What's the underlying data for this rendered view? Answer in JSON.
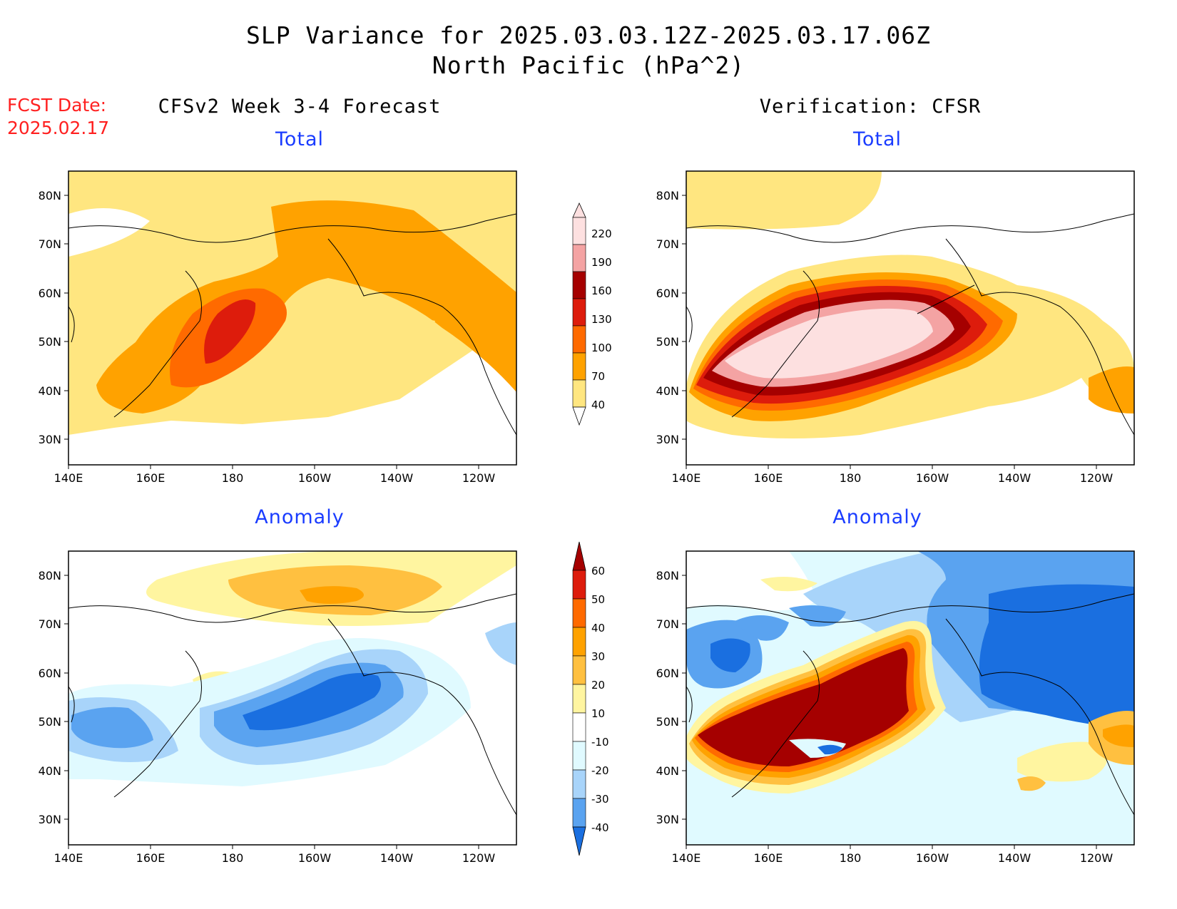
{
  "header": {
    "title_line1": "SLP Variance for 2025.03.03.12Z-2025.03.17.06Z",
    "title_line2": "North Pacific (hPa^2)",
    "fcst_label": "FCST Date:",
    "fcst_date": "2025.02.17"
  },
  "columns": {
    "left": "CFSv2 Week 3-4 Forecast",
    "right": "Verification: CFSR"
  },
  "panels": {
    "top_left_title": "Total",
    "top_right_title": "Total",
    "bottom_left_title": "Anomaly",
    "bottom_right_title": "Anomaly"
  },
  "axes": {
    "lat_labels": [
      "80N",
      "70N",
      "60N",
      "50N",
      "40N",
      "30N"
    ],
    "lon_labels": [
      "140E",
      "160E",
      "180",
      "160W",
      "140W",
      "120W"
    ]
  },
  "colorbars": {
    "total": {
      "levels": [
        "220",
        "190",
        "160",
        "130",
        "100",
        "70",
        "40"
      ],
      "colors": [
        "#fde0e0",
        "#f4a3a3",
        "#a50000",
        "#dd1c0c",
        "#ff6a00",
        "#ffa200",
        "#ffe680"
      ]
    },
    "anomaly": {
      "levels": [
        "60",
        "50",
        "40",
        "30",
        "20",
        "10",
        "-10",
        "-20",
        "-30",
        "-40"
      ],
      "colors": [
        "#a50000",
        "#dd1c0c",
        "#ff6a00",
        "#ffa200",
        "#ffc040",
        "#fff5a0",
        "#ffffff",
        "#e0faff",
        "#a8d4fa",
        "#5aa3f0",
        "#1a6fe0"
      ]
    }
  },
  "colors": {
    "title_blue": "#1a3cff",
    "fcst_red": "#ff2020"
  }
}
